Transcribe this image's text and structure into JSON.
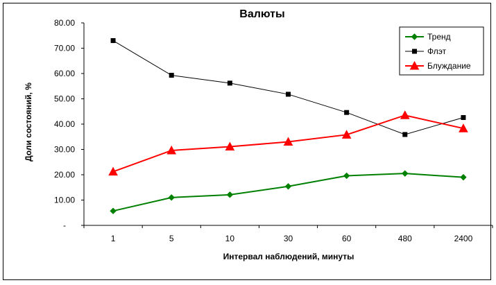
{
  "chart_data": {
    "type": "line",
    "title": "Валюты",
    "xlabel": "Интервал наблюдений, минуты",
    "ylabel": "Доли состояний, %",
    "categories": [
      "1",
      "5",
      "10",
      "30",
      "60",
      "480",
      "2400"
    ],
    "ylim": [
      0,
      80
    ],
    "y_ticks": [
      "-",
      "10.00",
      "20.00",
      "30.00",
      "40.00",
      "50.00",
      "60.00",
      "70.00",
      "80.00"
    ],
    "grid": false,
    "legend_position": "top-right",
    "series": [
      {
        "name": "Тренд",
        "values": [
          5.7,
          11.0,
          12.1,
          15.4,
          19.6,
          20.5,
          19.0
        ],
        "color": "#008000",
        "marker": "diamond"
      },
      {
        "name": "Флэт",
        "values": [
          73.0,
          59.3,
          56.2,
          51.8,
          44.6,
          35.9,
          42.6
        ],
        "color": "#000000",
        "marker": "square"
      },
      {
        "name": "Блуждание",
        "values": [
          21.2,
          29.6,
          31.1,
          33.0,
          35.8,
          43.5,
          38.3
        ],
        "color": "#ff0000",
        "marker": "triangle"
      }
    ]
  }
}
